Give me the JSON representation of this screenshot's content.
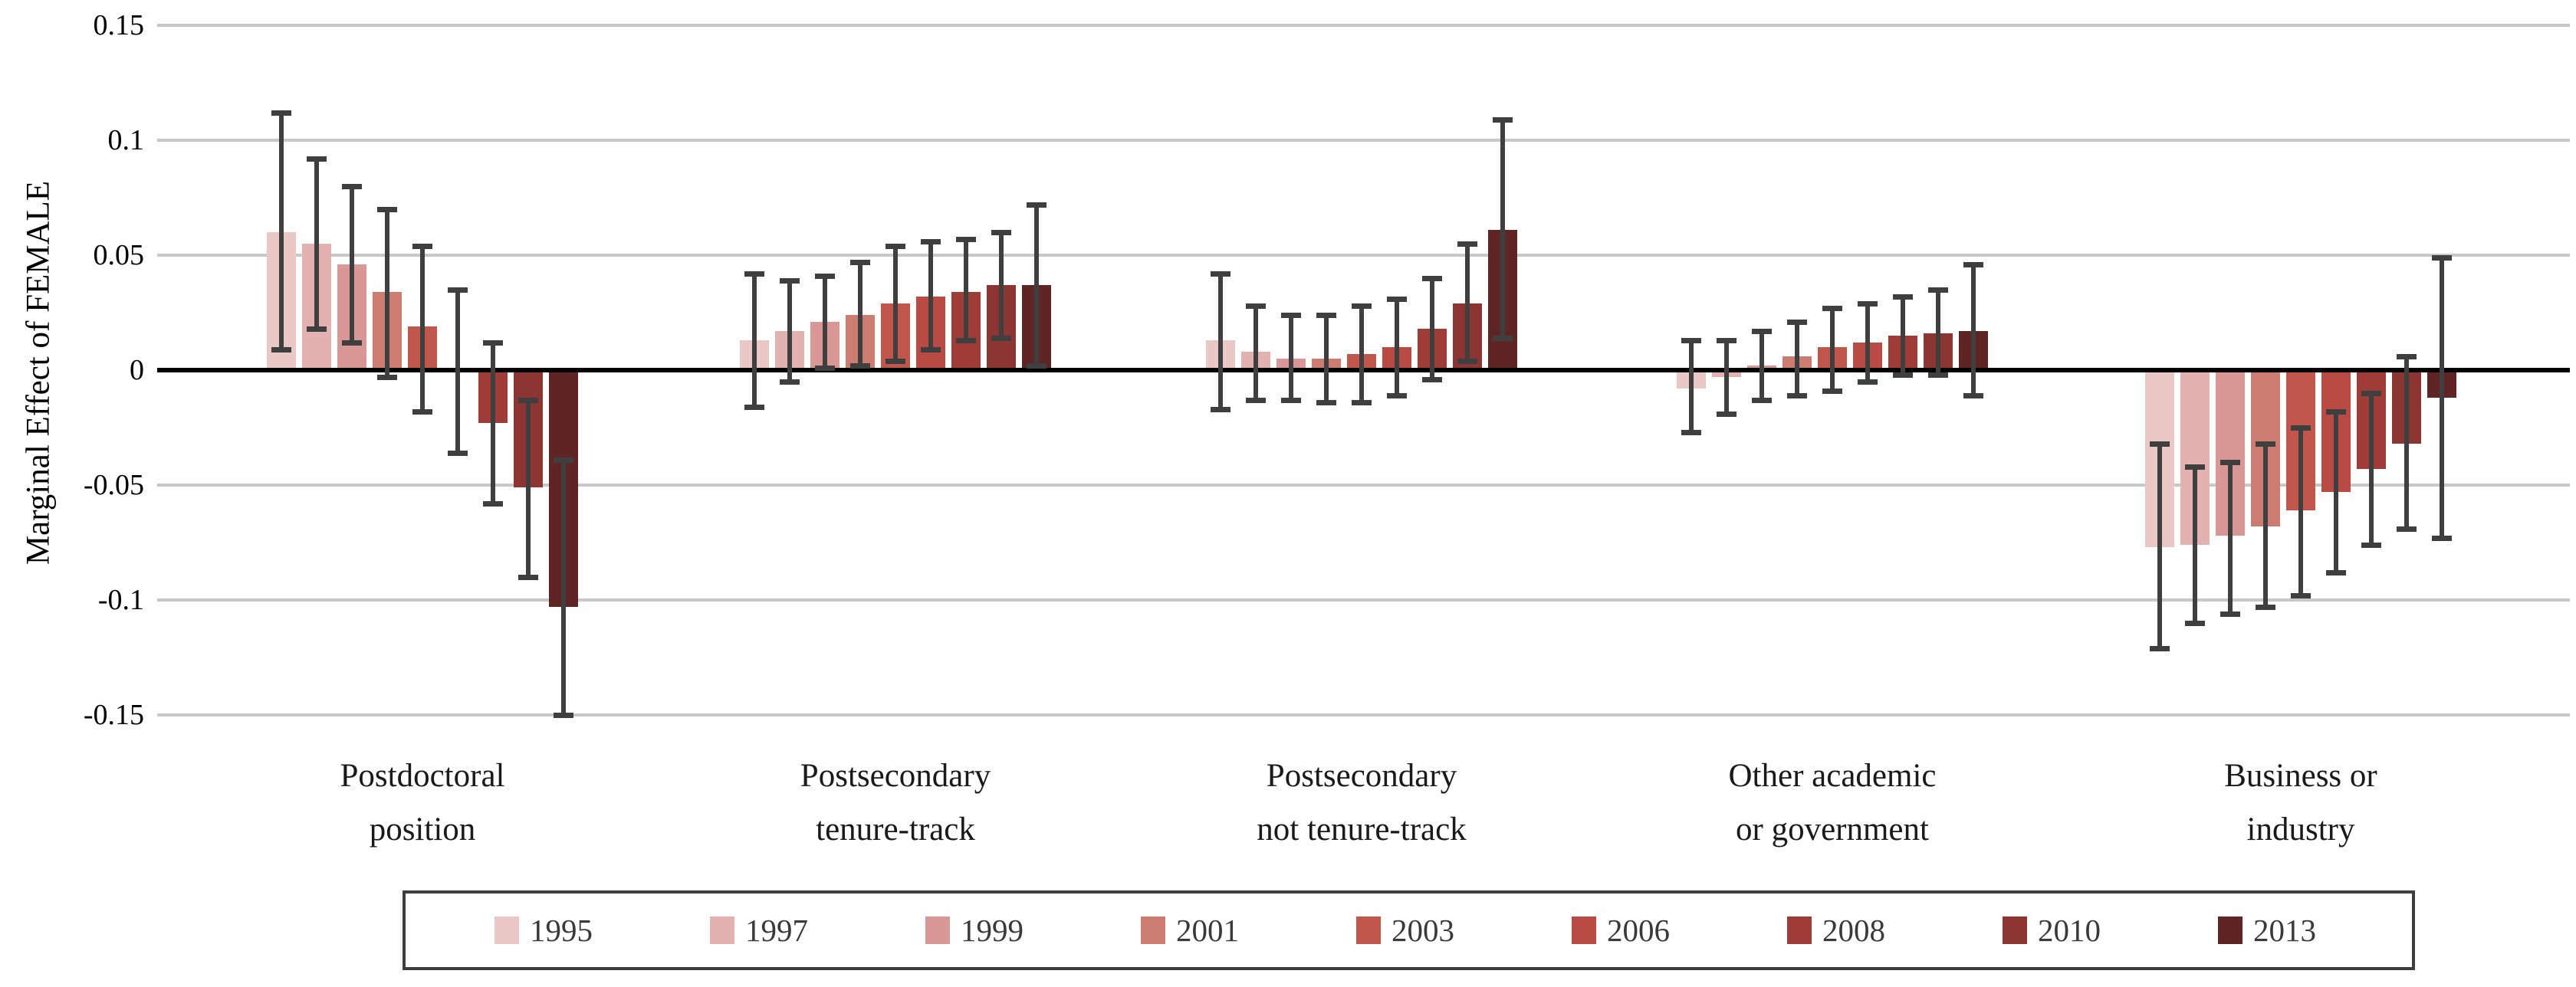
{
  "page": {
    "background": "#ffffff"
  },
  "chart_data": {
    "type": "bar",
    "title": "",
    "ylabel": "Marginal Effect of FEMALE",
    "ylim": [
      -0.15,
      0.15
    ],
    "yticks": [
      0.15,
      0.1,
      0.05,
      0,
      -0.05,
      -0.1,
      -0.15
    ],
    "ytick_labels": [
      "0.15",
      "0.1",
      "0.05",
      "0",
      "-0.05",
      "-0.1",
      "-0.15"
    ],
    "grid": true,
    "legend_position": "bottom-boxed",
    "error_bars": true,
    "categories": [
      [
        "Postdoctoral",
        "position"
      ],
      [
        "Postsecondary",
        "tenure-track"
      ],
      [
        "Postsecondary",
        "not tenure-track"
      ],
      [
        "Other academic",
        "or government"
      ],
      [
        "Business or",
        "industry"
      ]
    ],
    "series": [
      {
        "name": "1995",
        "color": "#e9c8c6",
        "values": [
          0.06,
          0.013,
          0.013,
          -0.008,
          -0.077
        ],
        "ci_low": [
          0.009,
          -0.016,
          -0.017,
          -0.027,
          -0.121
        ],
        "ci_high": [
          0.112,
          0.042,
          0.042,
          0.013,
          -0.032
        ]
      },
      {
        "name": "1997",
        "color": "#e3b2b0",
        "values": [
          0.055,
          0.017,
          0.008,
          -0.003,
          -0.076
        ],
        "ci_low": [
          0.018,
          -0.005,
          -0.013,
          -0.019,
          -0.11
        ],
        "ci_high": [
          0.092,
          0.039,
          0.028,
          0.013,
          -0.042
        ]
      },
      {
        "name": "1999",
        "color": "#d99896",
        "values": [
          0.046,
          0.021,
          0.005,
          0.002,
          -0.072
        ],
        "ci_low": [
          0.012,
          0.001,
          -0.013,
          -0.013,
          -0.106
        ],
        "ci_high": [
          0.08,
          0.041,
          0.024,
          0.017,
          -0.04
        ]
      },
      {
        "name": "2001",
        "color": "#cd7c72",
        "values": [
          0.034,
          0.024,
          0.005,
          0.006,
          -0.068
        ],
        "ci_low": [
          -0.003,
          0.002,
          -0.014,
          -0.011,
          -0.103
        ],
        "ci_high": [
          0.07,
          0.047,
          0.024,
          0.021,
          -0.032
        ]
      },
      {
        "name": "2003",
        "color": "#c1564c",
        "values": [
          0.019,
          0.029,
          0.007,
          0.01,
          -0.061
        ],
        "ci_low": [
          -0.018,
          0.004,
          -0.014,
          -0.009,
          -0.098
        ],
        "ci_high": [
          0.054,
          0.054,
          0.028,
          0.027,
          -0.025
        ]
      },
      {
        "name": "2006",
        "color": "#b94b44",
        "values": [
          -0.001,
          0.032,
          0.01,
          0.012,
          -0.053
        ],
        "ci_low": [
          -0.036,
          0.009,
          -0.011,
          -0.005,
          -0.088
        ],
        "ci_high": [
          0.035,
          0.056,
          0.031,
          0.029,
          -0.018
        ]
      },
      {
        "name": "2008",
        "color": "#a03c38",
        "values": [
          -0.023,
          0.034,
          0.018,
          0.015,
          -0.043
        ],
        "ci_low": [
          -0.058,
          0.013,
          -0.004,
          -0.002,
          -0.076
        ],
        "ci_high": [
          0.012,
          0.057,
          0.04,
          0.032,
          -0.01
        ]
      },
      {
        "name": "2010",
        "color": "#8d3533",
        "values": [
          -0.051,
          0.037,
          0.029,
          0.016,
          -0.032
        ],
        "ci_low": [
          -0.09,
          0.014,
          0.004,
          -0.002,
          -0.069
        ],
        "ci_high": [
          -0.013,
          0.06,
          0.055,
          0.035,
          0.006
        ]
      },
      {
        "name": "2013",
        "color": "#5f2525",
        "values": [
          -0.103,
          0.037,
          0.061,
          0.017,
          -0.012
        ],
        "ci_low": [
          -0.15,
          0.002,
          0.014,
          -0.011,
          -0.073
        ],
        "ci_high": [
          -0.039,
          0.072,
          0.109,
          0.046,
          0.049
        ]
      }
    ],
    "colors": {
      "gridline": "#c8c8c8",
      "zero_line": "#000000",
      "error_bar": "#3f3f3f",
      "tick_text": "#000000",
      "category_text": "#1a1a1a",
      "legend_text": "#3a3a3a",
      "legend_border": "#3e3e3e"
    }
  }
}
